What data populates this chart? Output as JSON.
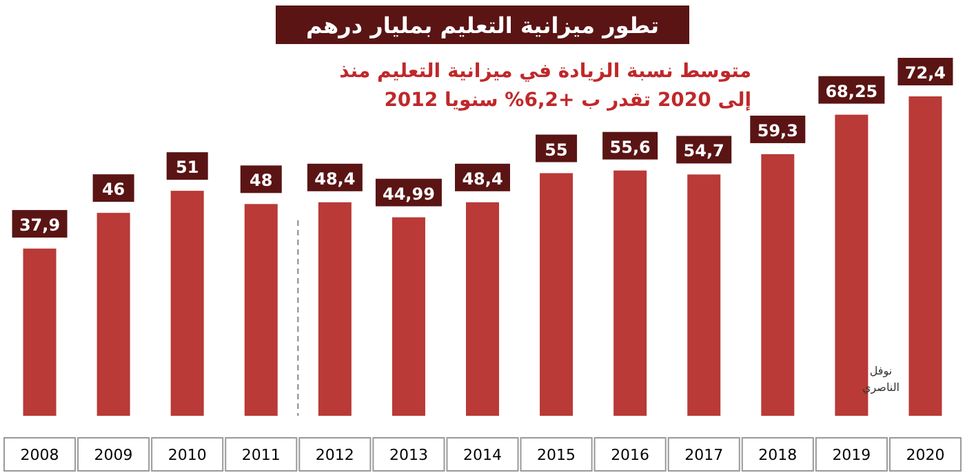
{
  "chart_data": {
    "type": "bar",
    "title": "تطور ميزانية التعليم بمليار درهم",
    "subtitle": "متوسط نسبة الزيادة في ميزانية التعليم منذ\n2012 إلى 2020 تقدر ب +6,2% سنويا",
    "categories": [
      "2008",
      "2009",
      "2010",
      "2011",
      "2012",
      "2013",
      "2014",
      "2015",
      "2016",
      "2017",
      "2018",
      "2019",
      "2020"
    ],
    "values": [
      37.9,
      46,
      51,
      48,
      48.4,
      44.99,
      48.4,
      55,
      55.6,
      54.7,
      59.3,
      68.25,
      72.4
    ],
    "value_labels": [
      "37,9",
      "46",
      "51",
      "48",
      "48,4",
      "44,99",
      "48,4",
      "55",
      "55,6",
      "54,7",
      "59,3",
      "68,25",
      "72,4"
    ],
    "color": "#b93a36",
    "ref_lines": [
      {
        "axis": "x",
        "value": "2012",
        "line_style": "dashed",
        "color": "#888888"
      }
    ],
    "annotations": [
      "نوفل\nالناصري"
    ]
  }
}
